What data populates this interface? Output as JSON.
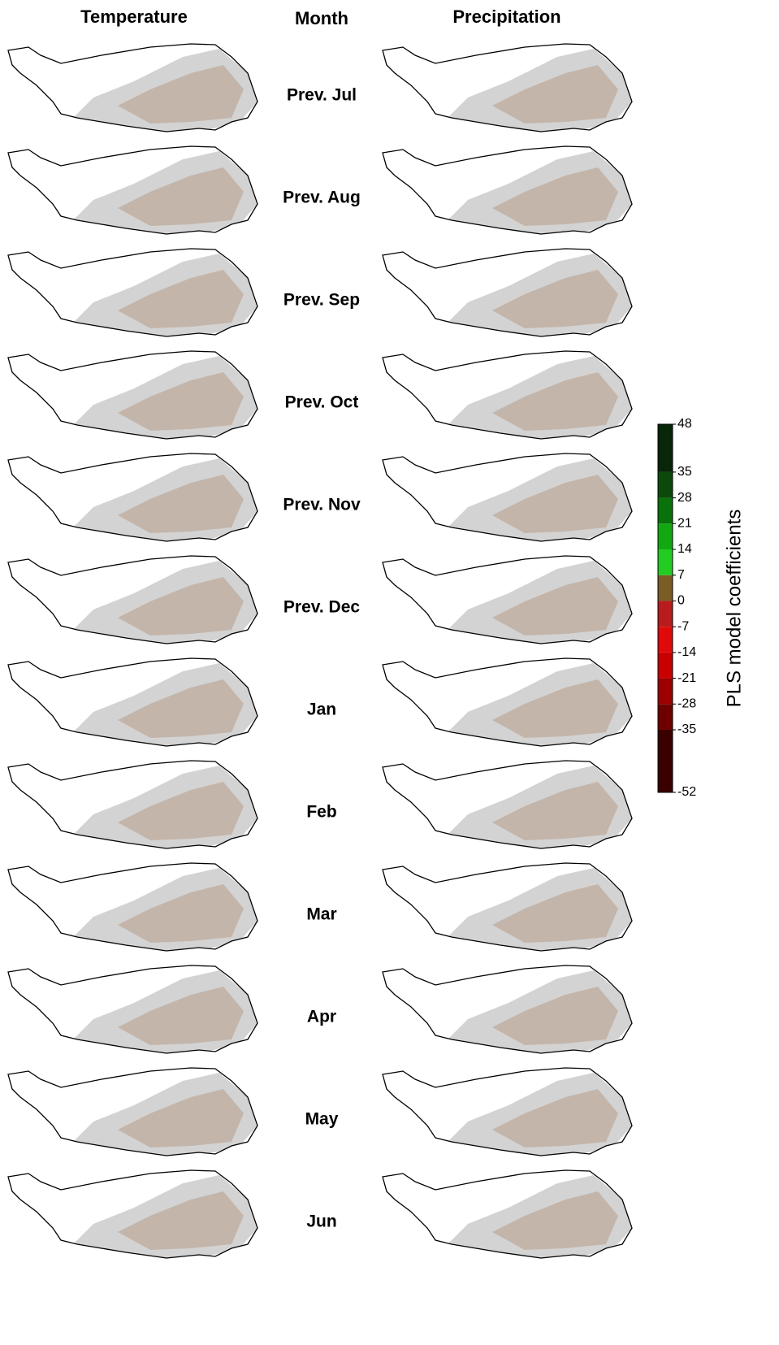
{
  "headers": {
    "temperature": "Temperature",
    "month": "Month",
    "precipitation": "Precipitation"
  },
  "months": [
    "Prev. Jul",
    "Prev. Aug",
    "Prev. Sep",
    "Prev. Oct",
    "Prev. Nov",
    "Prev. Dec",
    "Jan",
    "Feb",
    "Mar",
    "Apr",
    "May",
    "Jun"
  ],
  "colorbar": {
    "label": "PLS model coefficients",
    "lim": [
      -52,
      48
    ],
    "ticks": [
      -52,
      -35,
      -28,
      -21,
      -14,
      -7,
      0,
      7,
      14,
      21,
      28,
      35,
      48
    ],
    "colors": [
      "#3a0000",
      "#6e0000",
      "#9c0000",
      "#c80000",
      "#e00a0a",
      "#b81c1c",
      "#7a5c25",
      "#22cc22",
      "#12a812",
      "#0a720a",
      "#0b4a0b",
      "#082608"
    ]
  }
}
